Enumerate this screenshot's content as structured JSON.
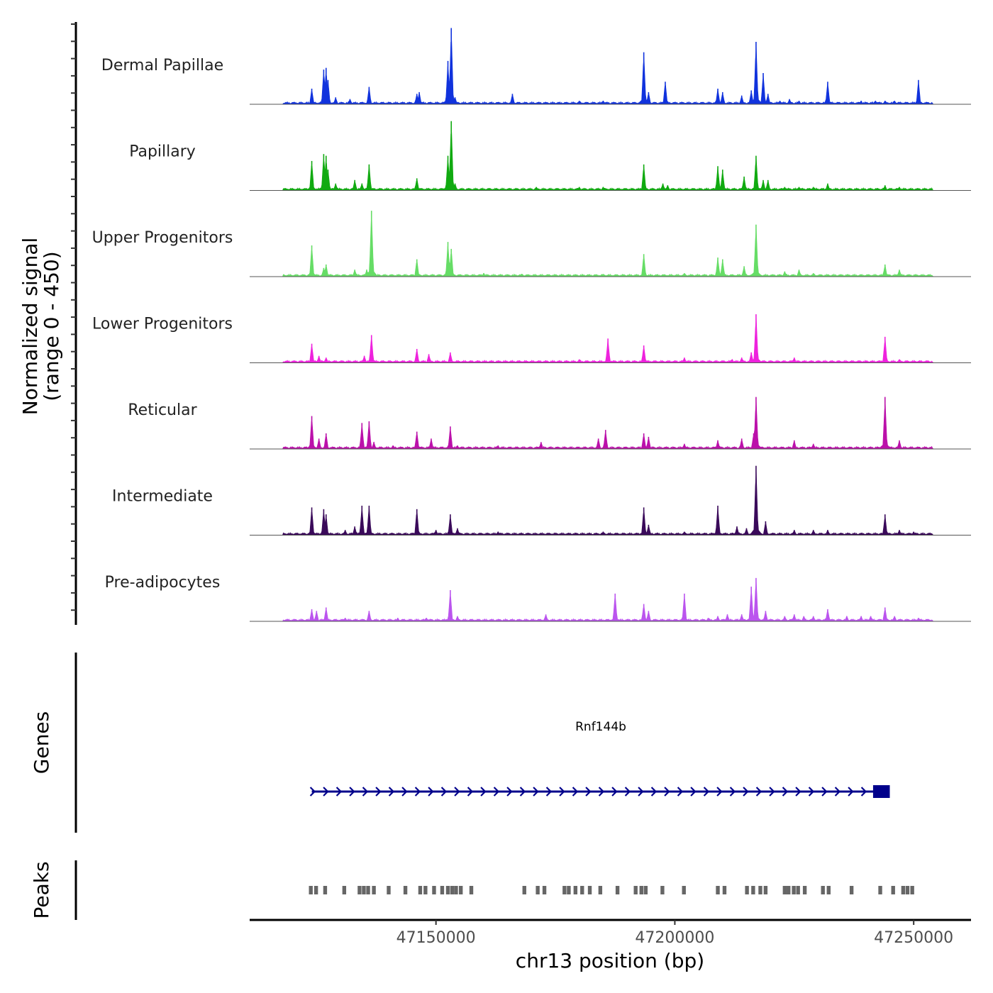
{
  "chart_data": {
    "type": "area",
    "title": "",
    "ylabel_line1": "Normalized signal",
    "ylabel_line2": "(range 0 - 450)",
    "ylim": [
      0,
      450
    ],
    "xlabel": "chr13 position (bp)",
    "xlim": [
      47111000,
      47262000
    ],
    "x_ticks": [
      47150000,
      47200000,
      47250000
    ],
    "x_tick_labels": [
      "47150000",
      "47200000",
      "47250000"
    ],
    "tracks": [
      {
        "name": "Dermal Papillae",
        "color": "#1133dd",
        "peaks": [
          [
            47124000,
            90
          ],
          [
            47126500,
            200
          ],
          [
            47127000,
            210
          ],
          [
            47127400,
            140
          ],
          [
            47129000,
            40
          ],
          [
            47132000,
            30
          ],
          [
            47136000,
            100
          ],
          [
            47146000,
            60
          ],
          [
            47146500,
            70
          ],
          [
            47152500,
            250
          ],
          [
            47153200,
            440
          ],
          [
            47154000,
            40
          ],
          [
            47166000,
            60
          ],
          [
            47180000,
            20
          ],
          [
            47185000,
            20
          ],
          [
            47193500,
            300
          ],
          [
            47194500,
            70
          ],
          [
            47198000,
            130
          ],
          [
            47209000,
            90
          ],
          [
            47210000,
            70
          ],
          [
            47214000,
            50
          ],
          [
            47216000,
            80
          ],
          [
            47217000,
            360
          ],
          [
            47218500,
            180
          ],
          [
            47219500,
            60
          ],
          [
            47222000,
            20
          ],
          [
            47224000,
            30
          ],
          [
            47226000,
            20
          ],
          [
            47232000,
            130
          ],
          [
            47239000,
            20
          ],
          [
            47242000,
            20
          ],
          [
            47244000,
            20
          ],
          [
            47246000,
            20
          ],
          [
            47251000,
            140
          ]
        ]
      },
      {
        "name": "Papillary",
        "color": "#11aa11",
        "peaks": [
          [
            47124000,
            170
          ],
          [
            47126500,
            210
          ],
          [
            47127000,
            200
          ],
          [
            47127400,
            120
          ],
          [
            47129000,
            40
          ],
          [
            47133000,
            60
          ],
          [
            47134500,
            40
          ],
          [
            47136000,
            150
          ],
          [
            47146000,
            70
          ],
          [
            47152500,
            200
          ],
          [
            47153200,
            400
          ],
          [
            47154000,
            40
          ],
          [
            47171000,
            20
          ],
          [
            47180000,
            20
          ],
          [
            47185000,
            20
          ],
          [
            47193500,
            150
          ],
          [
            47197500,
            40
          ],
          [
            47198500,
            30
          ],
          [
            47209000,
            140
          ],
          [
            47210000,
            120
          ],
          [
            47214500,
            80
          ],
          [
            47217000,
            200
          ],
          [
            47218500,
            60
          ],
          [
            47219500,
            60
          ],
          [
            47223000,
            20
          ],
          [
            47226000,
            20
          ],
          [
            47229000,
            20
          ],
          [
            47232000,
            40
          ],
          [
            47244000,
            30
          ],
          [
            47247000,
            20
          ]
        ]
      },
      {
        "name": "Upper Progenitors",
        "color": "#66dd66",
        "peaks": [
          [
            47124000,
            180
          ],
          [
            47126500,
            50
          ],
          [
            47127000,
            70
          ],
          [
            47133000,
            40
          ],
          [
            47135500,
            40
          ],
          [
            47136500,
            380
          ],
          [
            47146000,
            100
          ],
          [
            47152500,
            200
          ],
          [
            47153200,
            160
          ],
          [
            47160000,
            20
          ],
          [
            47168000,
            15
          ],
          [
            47185000,
            15
          ],
          [
            47193500,
            130
          ],
          [
            47202000,
            20
          ],
          [
            47209000,
            110
          ],
          [
            47210000,
            100
          ],
          [
            47214500,
            60
          ],
          [
            47217000,
            300
          ],
          [
            47223000,
            30
          ],
          [
            47226000,
            40
          ],
          [
            47229000,
            20
          ],
          [
            47244000,
            70
          ],
          [
            47247000,
            40
          ]
        ]
      },
      {
        "name": "Lower Progenitors",
        "color": "#ee22dd",
        "peaks": [
          [
            47124000,
            110
          ],
          [
            47125500,
            40
          ],
          [
            47127000,
            30
          ],
          [
            47135000,
            40
          ],
          [
            47136500,
            160
          ],
          [
            47146000,
            80
          ],
          [
            47148500,
            50
          ],
          [
            47153000,
            60
          ],
          [
            47180000,
            20
          ],
          [
            47186000,
            140
          ],
          [
            47193500,
            100
          ],
          [
            47202000,
            30
          ],
          [
            47212000,
            20
          ],
          [
            47214000,
            30
          ],
          [
            47216000,
            60
          ],
          [
            47217000,
            280
          ],
          [
            47225000,
            30
          ],
          [
            47244000,
            150
          ],
          [
            47247000,
            20
          ]
        ]
      },
      {
        "name": "Reticular",
        "color": "#bb11aa",
        "peaks": [
          [
            47124000,
            190
          ],
          [
            47125500,
            60
          ],
          [
            47127000,
            90
          ],
          [
            47134500,
            150
          ],
          [
            47136000,
            160
          ],
          [
            47137000,
            40
          ],
          [
            47141000,
            20
          ],
          [
            47146000,
            100
          ],
          [
            47149000,
            60
          ],
          [
            47153000,
            130
          ],
          [
            47154500,
            20
          ],
          [
            47163000,
            20
          ],
          [
            47172000,
            40
          ],
          [
            47184000,
            60
          ],
          [
            47185500,
            110
          ],
          [
            47193500,
            90
          ],
          [
            47194500,
            70
          ],
          [
            47202000,
            30
          ],
          [
            47209000,
            50
          ],
          [
            47214000,
            60
          ],
          [
            47216500,
            90
          ],
          [
            47217000,
            300
          ],
          [
            47225000,
            50
          ],
          [
            47229000,
            30
          ],
          [
            47244000,
            300
          ],
          [
            47247000,
            50
          ]
        ]
      },
      {
        "name": "Intermediate",
        "color": "#3a0a5a",
        "peaks": [
          [
            47124000,
            160
          ],
          [
            47126500,
            150
          ],
          [
            47127000,
            120
          ],
          [
            47131000,
            30
          ],
          [
            47133000,
            50
          ],
          [
            47134500,
            170
          ],
          [
            47136000,
            170
          ],
          [
            47146000,
            150
          ],
          [
            47150000,
            30
          ],
          [
            47153000,
            120
          ],
          [
            47154500,
            40
          ],
          [
            47163000,
            20
          ],
          [
            47185000,
            20
          ],
          [
            47193500,
            160
          ],
          [
            47194500,
            60
          ],
          [
            47202000,
            20
          ],
          [
            47209000,
            170
          ],
          [
            47213000,
            50
          ],
          [
            47215000,
            40
          ],
          [
            47217000,
            400
          ],
          [
            47219000,
            80
          ],
          [
            47225000,
            30
          ],
          [
            47229000,
            30
          ],
          [
            47232000,
            30
          ],
          [
            47244000,
            120
          ],
          [
            47247000,
            30
          ],
          [
            47250000,
            20
          ]
        ]
      },
      {
        "name": "Pre-adipocytes",
        "color": "#bb55ee",
        "peaks": [
          [
            47124000,
            70
          ],
          [
            47125000,
            60
          ],
          [
            47127000,
            80
          ],
          [
            47131000,
            20
          ],
          [
            47136000,
            60
          ],
          [
            47142000,
            20
          ],
          [
            47148000,
            20
          ],
          [
            47153000,
            180
          ],
          [
            47154500,
            30
          ],
          [
            47173000,
            40
          ],
          [
            47187500,
            160
          ],
          [
            47193500,
            100
          ],
          [
            47194500,
            60
          ],
          [
            47202000,
            160
          ],
          [
            47207000,
            20
          ],
          [
            47209000,
            30
          ],
          [
            47211000,
            40
          ],
          [
            47214000,
            40
          ],
          [
            47216000,
            200
          ],
          [
            47217000,
            250
          ],
          [
            47219000,
            60
          ],
          [
            47223000,
            30
          ],
          [
            47225000,
            40
          ],
          [
            47227000,
            30
          ],
          [
            47229000,
            30
          ],
          [
            47232000,
            70
          ],
          [
            47236000,
            30
          ],
          [
            47239000,
            30
          ],
          [
            47241000,
            30
          ],
          [
            47244000,
            80
          ],
          [
            47246000,
            30
          ],
          [
            47251000,
            20
          ]
        ]
      }
    ],
    "genes": {
      "label": "Genes",
      "items": [
        {
          "name": "Rnf144b",
          "start": 47124000,
          "end": 47245000,
          "strand": "+",
          "color": "#00008b",
          "exons": [
            [
              47241500,
              47245000
            ]
          ]
        }
      ]
    },
    "peaks_track": {
      "label": "Peaks",
      "color": "#666666",
      "regions": [
        [
          47123400,
          47124200
        ],
        [
          47124500,
          47125300
        ],
        [
          47126400,
          47127200
        ],
        [
          47130400,
          47131200
        ],
        [
          47133600,
          47134400
        ],
        [
          47134500,
          47135300
        ],
        [
          47135400,
          47136200
        ],
        [
          47136600,
          47137400
        ],
        [
          47139700,
          47140500
        ],
        [
          47143200,
          47144000
        ],
        [
          47146300,
          47147100
        ],
        [
          47147400,
          47148200
        ],
        [
          47149200,
          47150000
        ],
        [
          47150900,
          47151700
        ],
        [
          47152100,
          47152900
        ],
        [
          47153000,
          47153800
        ],
        [
          47153800,
          47154600
        ],
        [
          47154800,
          47155600
        ],
        [
          47157000,
          47157800
        ],
        [
          47168100,
          47168900
        ],
        [
          47170900,
          47171700
        ],
        [
          47172300,
          47173100
        ],
        [
          47176500,
          47177300
        ],
        [
          47177400,
          47178200
        ],
        [
          47178800,
          47179600
        ],
        [
          47180200,
          47181000
        ],
        [
          47181800,
          47182600
        ],
        [
          47184000,
          47184800
        ],
        [
          47187600,
          47188400
        ],
        [
          47191400,
          47192200
        ],
        [
          47192600,
          47193400
        ],
        [
          47193500,
          47194300
        ],
        [
          47197000,
          47197800
        ],
        [
          47201500,
          47202300
        ],
        [
          47208600,
          47209400
        ],
        [
          47210000,
          47210800
        ],
        [
          47214700,
          47215500
        ],
        [
          47216000,
          47216800
        ],
        [
          47217500,
          47218300
        ],
        [
          47218600,
          47219400
        ],
        [
          47222600,
          47223400
        ],
        [
          47223400,
          47224200
        ],
        [
          47224500,
          47225300
        ],
        [
          47225400,
          47226200
        ],
        [
          47226800,
          47227600
        ],
        [
          47230600,
          47231400
        ],
        [
          47231800,
          47232600
        ],
        [
          47236600,
          47237400
        ],
        [
          47242600,
          47243400
        ],
        [
          47245300,
          47246100
        ],
        [
          47247400,
          47248200
        ],
        [
          47248300,
          47249100
        ],
        [
          47249300,
          47250100
        ]
      ]
    }
  }
}
